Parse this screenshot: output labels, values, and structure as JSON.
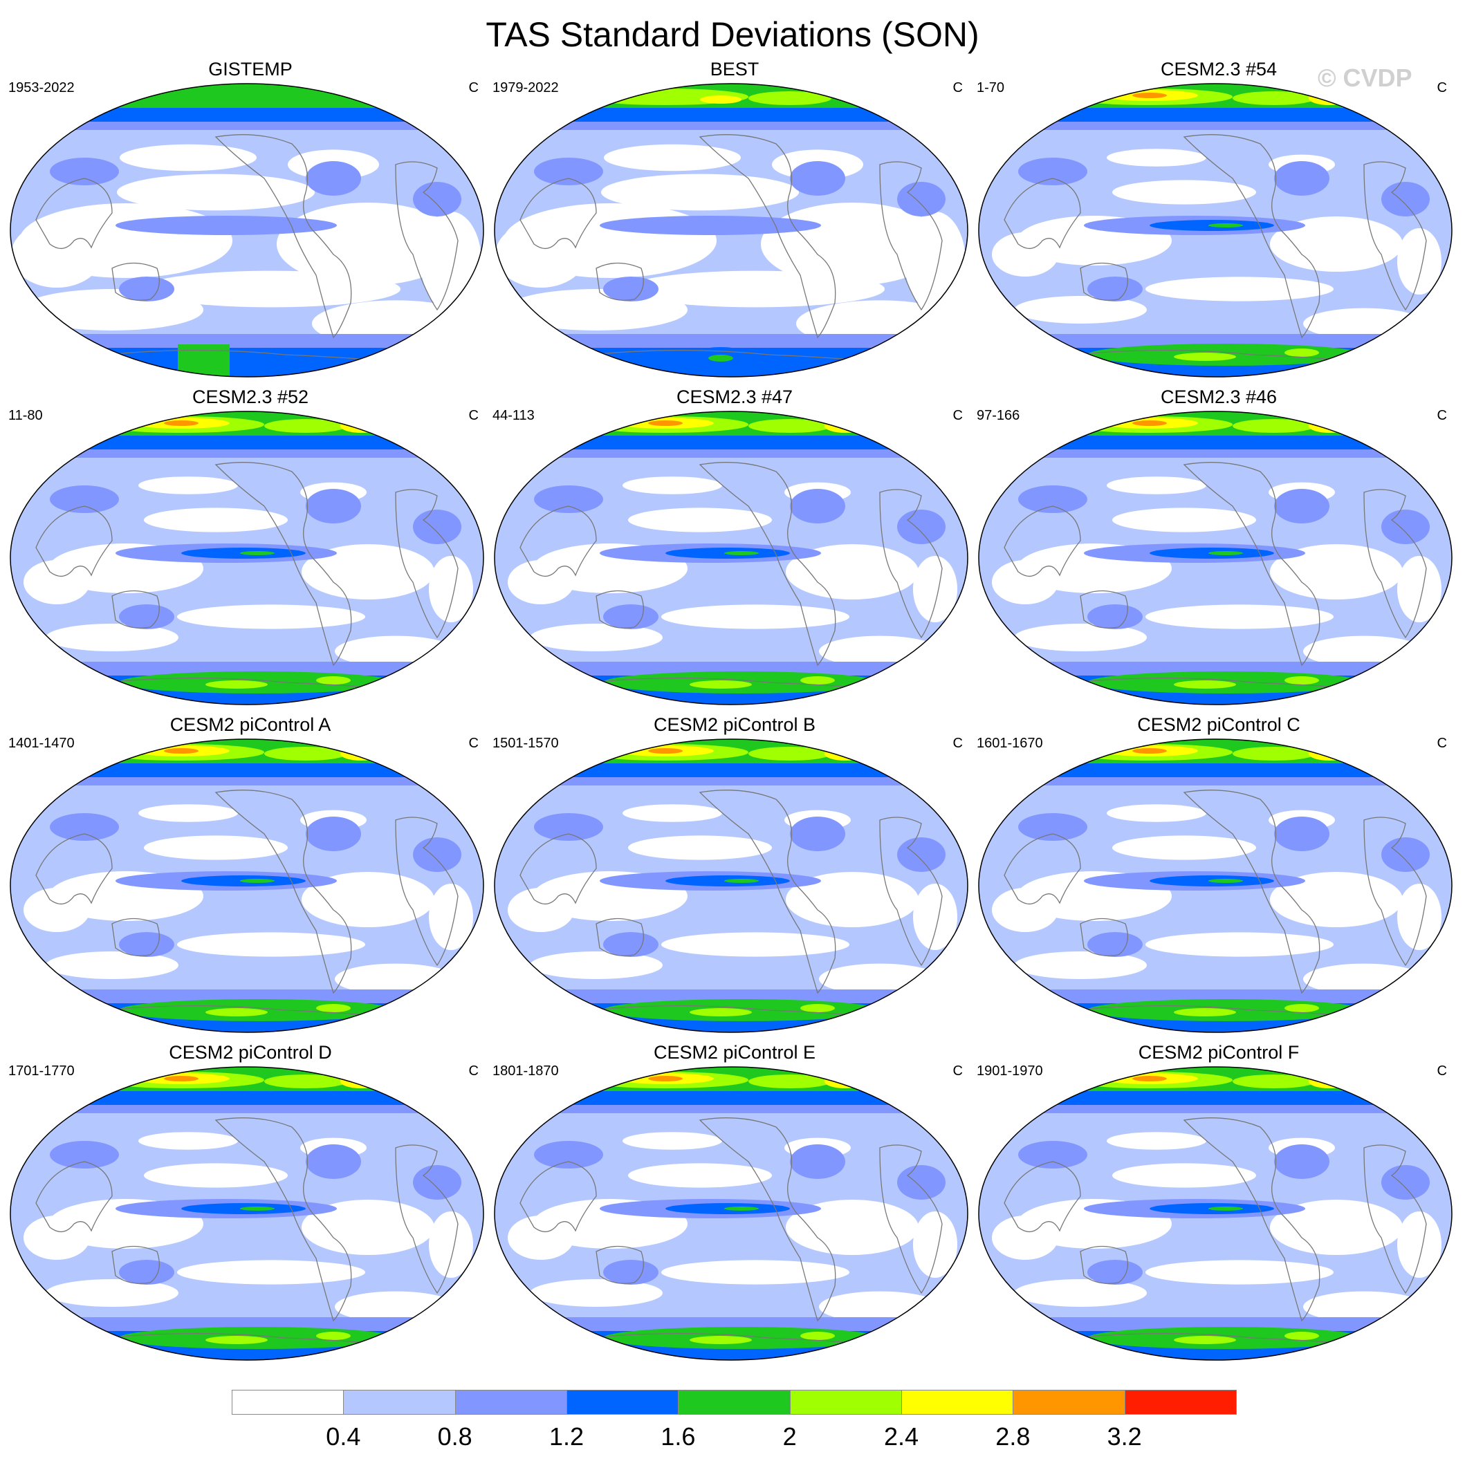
{
  "title": "TAS Standard Deviations (SON)",
  "watermark": "© CVDP",
  "units": "C",
  "panels": [
    {
      "title": "GISTEMP",
      "years": "1953-2022",
      "variant": 0
    },
    {
      "title": "BEST",
      "years": "1979-2022",
      "variant": 1
    },
    {
      "title": "CESM2.3 #54",
      "years": "1-70",
      "variant": 2
    },
    {
      "title": "CESM2.3 #52",
      "years": "11-80",
      "variant": 3
    },
    {
      "title": "CESM2.3 #47",
      "years": "44-113",
      "variant": 3
    },
    {
      "title": "CESM2.3 #46",
      "years": "97-166",
      "variant": 3
    },
    {
      "title": "CESM2 piControl A",
      "years": "1401-1470",
      "variant": 4
    },
    {
      "title": "CESM2 piControl B",
      "years": "1501-1570",
      "variant": 5
    },
    {
      "title": "CESM2 piControl C",
      "years": "1601-1670",
      "variant": 4
    },
    {
      "title": "CESM2 piControl D",
      "years": "1701-1770",
      "variant": 4
    },
    {
      "title": "CESM2 piControl E",
      "years": "1801-1870",
      "variant": 4
    },
    {
      "title": "CESM2 piControl F",
      "years": "1901-1970",
      "variant": 5
    }
  ],
  "colorbar": {
    "colors": [
      "#ffffff",
      "#b4c8ff",
      "#8296ff",
      "#0064ff",
      "#1ec81e",
      "#a0ff00",
      "#ffff00",
      "#ff9600",
      "#ff1e00"
    ],
    "labels": [
      "0.4",
      "0.8",
      "1.2",
      "1.6",
      "2",
      "2.4",
      "2.8",
      "3.2"
    ]
  }
}
